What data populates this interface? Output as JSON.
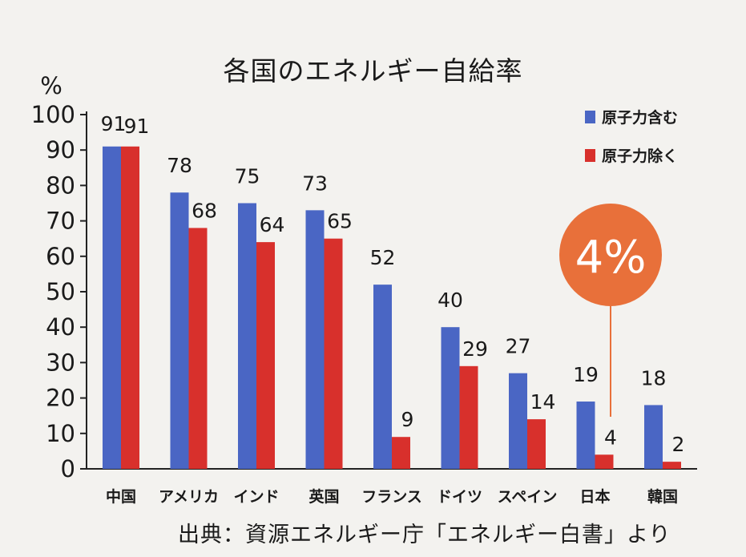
{
  "chart_data": {
    "type": "bar",
    "title": "各国のエネルギー自給率",
    "ylabel": "%",
    "ylim": [
      0,
      100
    ],
    "yticks": [
      "0",
      "10",
      "20",
      "30",
      "40",
      "50",
      "60",
      "70",
      "80",
      "90",
      "100"
    ],
    "categories": [
      "中国",
      "アメリカ",
      "インド",
      "英国",
      "フランス",
      "ドイツ",
      "スペイン",
      "日本",
      "韓国"
    ],
    "series": [
      {
        "name": "原子力含む",
        "color": "#4a66c4",
        "values": [
          91,
          78,
          75,
          73,
          52,
          40,
          27,
          19,
          18
        ]
      },
      {
        "name": "原子力除く",
        "color": "#d8302c",
        "values": [
          91,
          68,
          64,
          65,
          9,
          29,
          14,
          4,
          2
        ]
      }
    ],
    "data_labels": {
      "series_1": [
        "91",
        "78",
        "75",
        "73",
        "52",
        "40",
        "27",
        "19",
        "18"
      ],
      "series_2": [
        "91",
        "68",
        "64",
        "65",
        "9",
        "29",
        "14",
        "4",
        "2"
      ]
    },
    "legend_position": "top-right",
    "grid": false,
    "annotation": {
      "text": "4%",
      "category": "日本",
      "series": "原子力除く",
      "color": "#e8703a"
    }
  },
  "source": "出典：資源エネルギー庁「エネルギー白書」より"
}
